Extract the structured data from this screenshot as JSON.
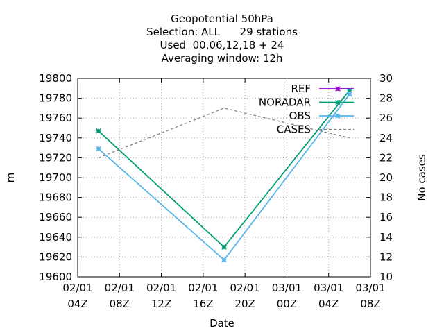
{
  "chart_data": {
    "type": "line",
    "title_lines": [
      "Geopotential 50hPa",
      "Selection: ALL      29 stations",
      "Used  00,06,12,18 + 24",
      "Averaging window: 12h"
    ],
    "xlabel": "Date",
    "ylabel": "m",
    "y2label": "No cases",
    "x_ticks": [
      {
        "h": 4,
        "line1": "02/01",
        "line2": "04Z"
      },
      {
        "h": 8,
        "line1": "02/01",
        "line2": "08Z"
      },
      {
        "h": 12,
        "line1": "02/01",
        "line2": "12Z"
      },
      {
        "h": 16,
        "line1": "02/01",
        "line2": "16Z"
      },
      {
        "h": 20,
        "line1": "02/01",
        "line2": "20Z"
      },
      {
        "h": 24,
        "line1": "03/01",
        "line2": "00Z"
      },
      {
        "h": 28,
        "line1": "03/01",
        "line2": "04Z"
      },
      {
        "h": 32,
        "line1": "03/01",
        "line2": "08Z"
      }
    ],
    "xlim": [
      4,
      32
    ],
    "ylim": [
      19600,
      19800
    ],
    "y_ticks": [
      19600,
      19620,
      19640,
      19660,
      19680,
      19700,
      19720,
      19740,
      19760,
      19780,
      19800
    ],
    "y2lim": [
      10,
      30
    ],
    "y2_ticks": [
      10,
      12,
      14,
      16,
      18,
      20,
      22,
      24,
      26,
      28,
      30
    ],
    "grid": true,
    "legend_position": "top-right",
    "series": [
      {
        "name": "REF",
        "color": "#9400d3",
        "axis": "y",
        "style": "line-points",
        "x": [],
        "y": []
      },
      {
        "name": "NORADAR",
        "color": "#009e73",
        "axis": "y",
        "style": "line-points",
        "x": [
          6,
          18,
          30
        ],
        "y": [
          19747,
          19630,
          19788
        ]
      },
      {
        "name": "OBS",
        "color": "#56b4e9",
        "axis": "y",
        "style": "line-points",
        "x": [
          6,
          18,
          30
        ],
        "y": [
          19729,
          19617,
          19784
        ]
      },
      {
        "name": "CASES",
        "color": "#808080",
        "axis": "y2",
        "style": "dashed",
        "x": [
          6,
          18,
          30
        ],
        "y": [
          22,
          27,
          24
        ]
      }
    ]
  }
}
